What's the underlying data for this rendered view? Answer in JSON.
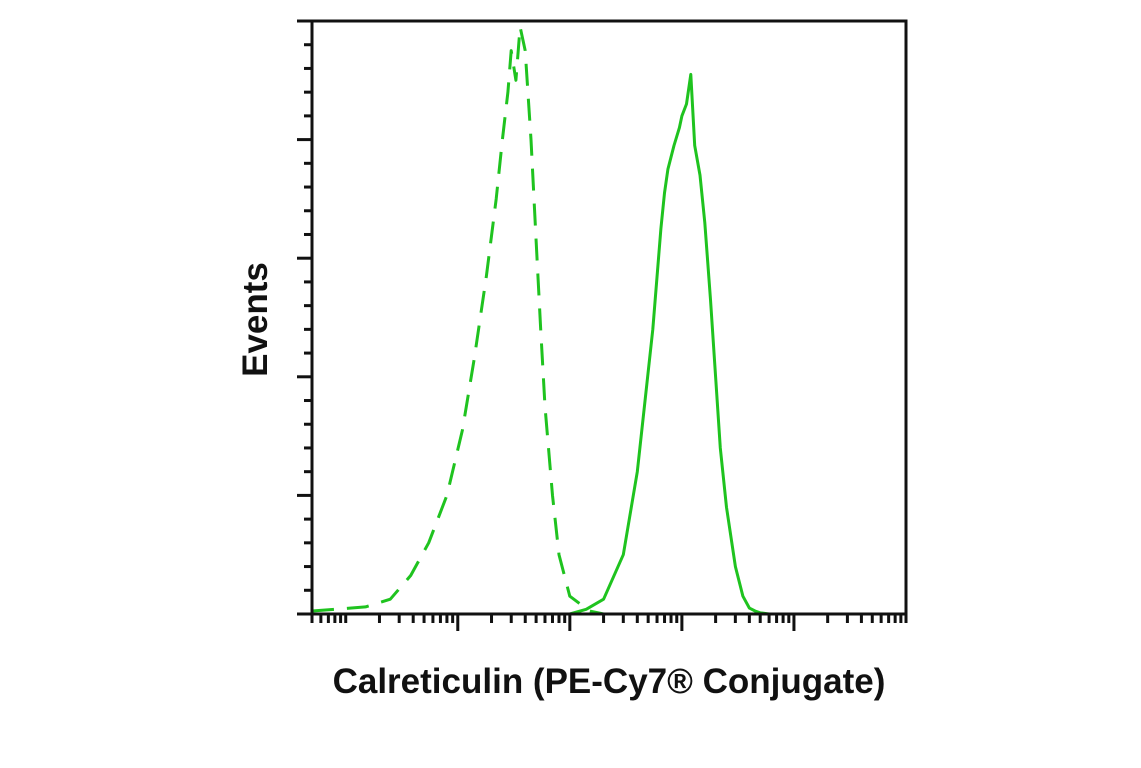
{
  "chart_data": {
    "type": "line",
    "xlabel": "Calreticulin (PE-Cy7® Conjugate)",
    "ylabel": "Events",
    "x_scale": "log",
    "xlim": [
      0.5,
      100000
    ],
    "ylim": [
      0,
      100
    ],
    "grid": false,
    "legend": "none",
    "x_major_ticks": [
      10,
      100,
      1000,
      10000
    ],
    "y_major_ticks": [
      0,
      20,
      40,
      60,
      80,
      100
    ],
    "series": [
      {
        "style": "dashed",
        "color": "#1fc31f",
        "x": [
          0.5,
          0.8,
          1.5,
          2.5,
          3.8,
          5.5,
          8,
          11,
          14,
          18,
          22,
          25,
          28,
          30,
          33,
          36,
          40,
          45,
          50,
          55,
          60,
          70,
          80,
          100,
          150,
          200,
          1000,
          10000,
          100000
        ],
        "y": [
          0.5,
          0.8,
          1.2,
          2.5,
          6.5,
          12,
          20,
          31,
          43,
          57,
          70,
          80,
          88,
          95,
          90,
          99,
          95,
          80,
          63,
          48,
          35,
          20,
          10,
          3,
          0.5,
          0,
          0,
          0,
          0
        ]
      },
      {
        "style": "solid",
        "color": "#1fc31f",
        "x": [
          0.5,
          10,
          100,
          140,
          200,
          300,
          400,
          550,
          650,
          700,
          750,
          850,
          950,
          1000,
          1100,
          1200,
          1300,
          1450,
          1600,
          1800,
          2000,
          2200,
          2500,
          3000,
          3500,
          4000,
          4500,
          5000,
          6000,
          8000,
          10000,
          100000
        ],
        "y": [
          0,
          0,
          0,
          0.8,
          2.5,
          10,
          24,
          48,
          65,
          71,
          75,
          79,
          82,
          84,
          86,
          91,
          79,
          74,
          66,
          53,
          40,
          28,
          18,
          8,
          3,
          1,
          0.5,
          0.2,
          0,
          0,
          0,
          0
        ]
      }
    ]
  }
}
